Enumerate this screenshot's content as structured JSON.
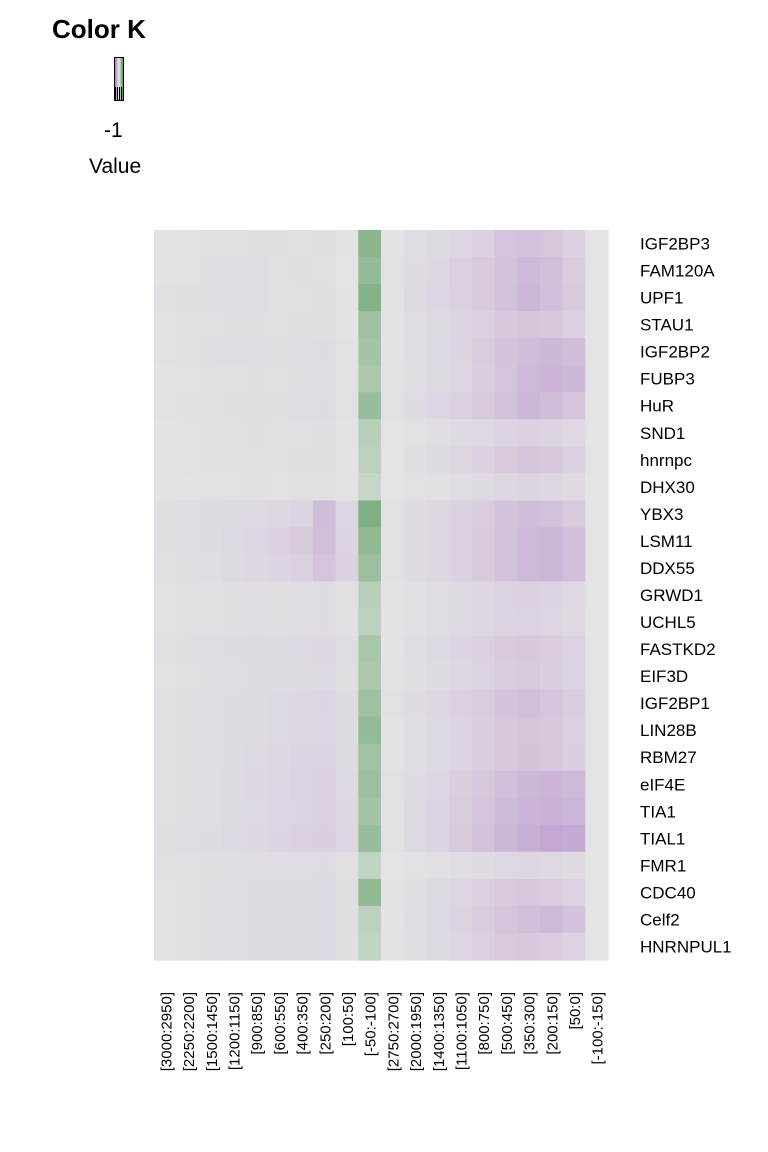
{
  "legend": {
    "title": "Color K",
    "min_label": "-1",
    "value_label": "Value",
    "low_color": "#1a7a22",
    "high_color": "#9a5cbb",
    "mid_color": "#e6e6e6"
  },
  "chart_data": {
    "type": "heatmap",
    "title": "",
    "xlabel": "",
    "ylabel": "",
    "value_range": [
      -1,
      1
    ],
    "rows": [
      "IGF2BP3",
      "FAM120A",
      "UPF1",
      "STAU1",
      "IGF2BP2",
      "FUBP3",
      "HuR",
      "SND1",
      "hnrnpc",
      "DHX30",
      "YBX3",
      "LSM11",
      "DDX55",
      "GRWD1",
      "UCHL5",
      "FASTKD2",
      "EIF3D",
      "IGF2BP1",
      "LIN28B",
      "RBM27",
      "eIF4E",
      "TIA1",
      "TIAL1",
      "FMR1",
      "CDC40",
      "Celf2",
      "HNRNPUL1"
    ],
    "columns": [
      "[3000:2950]",
      "[2250:2200]",
      "[1500:1450]",
      "[1200:1150]",
      "[900:850]",
      "[600:550]",
      "[400:350]",
      "[250:200]",
      "[100:50]",
      "[-50:-100]",
      "[2750:2700]",
      "[2000:1950]",
      "[1400:1350]",
      "[1100:1050]",
      "[800:750]",
      "[500:450]",
      "[350:300]",
      "[200:150]",
      "[50:0]",
      "[-100:-150]"
    ],
    "values": [
      [
        0.03,
        0.04,
        0.05,
        0.05,
        0.06,
        0.06,
        0.05,
        0.06,
        0.03,
        -0.45,
        0.03,
        0.07,
        0.09,
        0.12,
        0.15,
        0.24,
        0.26,
        0.23,
        0.15,
        0.02
      ],
      [
        0.03,
        0.04,
        0.06,
        0.07,
        0.07,
        0.05,
        0.06,
        0.05,
        0.02,
        -0.4,
        0.04,
        0.08,
        0.11,
        0.16,
        0.2,
        0.26,
        0.32,
        0.28,
        0.19,
        0.02
      ],
      [
        0.05,
        0.06,
        0.06,
        0.07,
        0.07,
        0.05,
        0.05,
        0.06,
        0.03,
        -0.48,
        0.04,
        0.09,
        0.12,
        0.16,
        0.2,
        0.27,
        0.35,
        0.29,
        0.2,
        0.02
      ],
      [
        0.04,
        0.05,
        0.05,
        0.06,
        0.06,
        0.05,
        0.06,
        0.06,
        0.03,
        -0.35,
        0.03,
        0.07,
        0.09,
        0.13,
        0.16,
        0.21,
        0.24,
        0.21,
        0.15,
        0.02
      ],
      [
        0.04,
        0.05,
        0.06,
        0.07,
        0.07,
        0.06,
        0.07,
        0.08,
        0.04,
        -0.32,
        0.03,
        0.07,
        0.1,
        0.13,
        0.18,
        0.25,
        0.3,
        0.33,
        0.3,
        0.02
      ],
      [
        0.03,
        0.04,
        0.05,
        0.05,
        0.06,
        0.05,
        0.06,
        0.07,
        0.04,
        -0.28,
        0.03,
        0.06,
        0.09,
        0.12,
        0.17,
        0.24,
        0.32,
        0.36,
        0.33,
        0.02
      ],
      [
        0.04,
        0.05,
        0.05,
        0.06,
        0.06,
        0.06,
        0.07,
        0.08,
        0.04,
        -0.38,
        0.04,
        0.08,
        0.12,
        0.16,
        0.2,
        0.27,
        0.34,
        0.3,
        0.24,
        0.02
      ],
      [
        0.03,
        0.04,
        0.05,
        0.05,
        0.06,
        0.05,
        0.05,
        0.06,
        0.03,
        -0.22,
        0.02,
        0.04,
        0.06,
        0.08,
        0.1,
        0.13,
        0.15,
        0.13,
        0.1,
        0.01
      ],
      [
        0.03,
        0.04,
        0.05,
        0.05,
        0.05,
        0.05,
        0.06,
        0.06,
        0.03,
        -0.2,
        0.02,
        0.06,
        0.08,
        0.11,
        0.15,
        0.2,
        0.24,
        0.21,
        0.16,
        0.02
      ],
      [
        0.03,
        0.03,
        0.04,
        0.04,
        0.05,
        0.04,
        0.05,
        0.05,
        0.03,
        -0.15,
        0.02,
        0.04,
        0.05,
        0.07,
        0.09,
        0.11,
        0.13,
        0.11,
        0.09,
        0.01
      ],
      [
        0.06,
        0.07,
        0.08,
        0.09,
        0.1,
        0.11,
        0.13,
        0.3,
        0.12,
        -0.5,
        0.04,
        0.08,
        0.11,
        0.15,
        0.19,
        0.25,
        0.3,
        0.27,
        0.2,
        0.02
      ],
      [
        0.06,
        0.07,
        0.08,
        0.1,
        0.12,
        0.15,
        0.2,
        0.28,
        0.14,
        -0.42,
        0.04,
        0.08,
        0.11,
        0.15,
        0.2,
        0.27,
        0.32,
        0.35,
        0.28,
        0.02
      ],
      [
        0.05,
        0.06,
        0.07,
        0.09,
        0.11,
        0.13,
        0.16,
        0.24,
        0.15,
        -0.36,
        0.04,
        0.08,
        0.11,
        0.15,
        0.2,
        0.27,
        0.32,
        0.35,
        0.28,
        0.02
      ],
      [
        0.04,
        0.05,
        0.05,
        0.06,
        0.07,
        0.06,
        0.07,
        0.08,
        0.05,
        -0.22,
        0.03,
        0.05,
        0.07,
        0.09,
        0.11,
        0.14,
        0.15,
        0.13,
        0.1,
        0.01
      ],
      [
        0.04,
        0.05,
        0.05,
        0.06,
        0.07,
        0.06,
        0.07,
        0.08,
        0.05,
        -0.2,
        0.03,
        0.05,
        0.07,
        0.09,
        0.11,
        0.13,
        0.14,
        0.12,
        0.09,
        0.01
      ],
      [
        0.05,
        0.06,
        0.07,
        0.08,
        0.09,
        0.09,
        0.1,
        0.11,
        0.07,
        -0.3,
        0.03,
        0.07,
        0.1,
        0.13,
        0.16,
        0.2,
        0.22,
        0.19,
        0.14,
        0.02
      ],
      [
        0.04,
        0.05,
        0.06,
        0.07,
        0.08,
        0.08,
        0.09,
        0.1,
        0.06,
        -0.28,
        0.03,
        0.06,
        0.08,
        0.11,
        0.14,
        0.18,
        0.2,
        0.17,
        0.13,
        0.02
      ],
      [
        0.05,
        0.06,
        0.07,
        0.08,
        0.09,
        0.1,
        0.11,
        0.13,
        0.08,
        -0.35,
        0.04,
        0.08,
        0.11,
        0.15,
        0.19,
        0.25,
        0.28,
        0.24,
        0.18,
        0.02
      ],
      [
        0.05,
        0.06,
        0.07,
        0.08,
        0.09,
        0.1,
        0.11,
        0.12,
        0.08,
        -0.4,
        0.03,
        0.07,
        0.1,
        0.13,
        0.17,
        0.22,
        0.24,
        0.21,
        0.16,
        0.02
      ],
      [
        0.05,
        0.06,
        0.07,
        0.08,
        0.1,
        0.11,
        0.13,
        0.14,
        0.09,
        -0.34,
        0.03,
        0.07,
        0.1,
        0.13,
        0.17,
        0.22,
        0.25,
        0.22,
        0.17,
        0.02
      ],
      [
        0.05,
        0.06,
        0.07,
        0.09,
        0.11,
        0.12,
        0.14,
        0.15,
        0.1,
        -0.36,
        0.04,
        0.08,
        0.12,
        0.17,
        0.22,
        0.29,
        0.34,
        0.36,
        0.32,
        0.02
      ],
      [
        0.05,
        0.06,
        0.07,
        0.09,
        0.1,
        0.12,
        0.13,
        0.15,
        0.11,
        -0.32,
        0.04,
        0.09,
        0.13,
        0.18,
        0.24,
        0.31,
        0.36,
        0.38,
        0.35,
        0.02
      ],
      [
        0.06,
        0.07,
        0.08,
        0.1,
        0.11,
        0.13,
        0.15,
        0.17,
        0.12,
        -0.38,
        0.04,
        0.1,
        0.14,
        0.2,
        0.26,
        0.34,
        0.4,
        0.45,
        0.43,
        0.02
      ],
      [
        0.05,
        0.05,
        0.06,
        0.06,
        0.07,
        0.07,
        0.07,
        0.08,
        0.05,
        -0.18,
        0.02,
        0.04,
        0.05,
        0.07,
        0.08,
        0.1,
        0.11,
        0.1,
        0.08,
        0.01
      ],
      [
        0.04,
        0.05,
        0.06,
        0.07,
        0.08,
        0.08,
        0.09,
        0.1,
        0.06,
        -0.42,
        0.03,
        0.06,
        0.09,
        0.12,
        0.16,
        0.2,
        0.22,
        0.19,
        0.14,
        0.02
      ],
      [
        0.04,
        0.05,
        0.06,
        0.07,
        0.08,
        0.08,
        0.09,
        0.1,
        0.06,
        -0.2,
        0.03,
        0.07,
        0.1,
        0.14,
        0.18,
        0.24,
        0.28,
        0.32,
        0.26,
        0.02
      ],
      [
        0.04,
        0.05,
        0.06,
        0.07,
        0.08,
        0.08,
        0.09,
        0.1,
        0.06,
        -0.18,
        0.03,
        0.06,
        0.09,
        0.12,
        0.16,
        0.2,
        0.22,
        0.19,
        0.14,
        0.02
      ]
    ]
  }
}
